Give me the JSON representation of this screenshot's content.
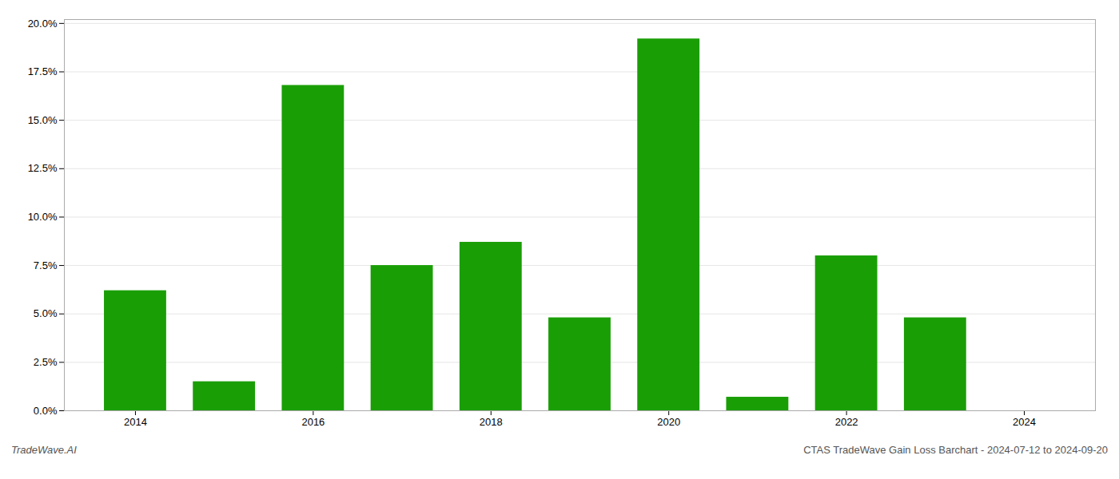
{
  "chart_data": {
    "type": "bar",
    "x": [
      2014,
      2015,
      2016,
      2017,
      2018,
      2019,
      2020,
      2021,
      2022,
      2023,
      2024
    ],
    "values": [
      0.062,
      0.015,
      0.168,
      0.075,
      0.087,
      0.048,
      0.192,
      0.007,
      0.08,
      0.048,
      0.0
    ],
    "color": "#1a9e06",
    "xlim": [
      2013.2,
      2024.8
    ],
    "xticks": [
      2014,
      2016,
      2018,
      2020,
      2022,
      2024
    ],
    "ylim": [
      0,
      0.202
    ],
    "yticks": [
      {
        "value": 0.0,
        "label": "0.0%"
      },
      {
        "value": 0.025,
        "label": "2.5%"
      },
      {
        "value": 0.05,
        "label": "5.0%"
      },
      {
        "value": 0.075,
        "label": "7.5%"
      },
      {
        "value": 0.1,
        "label": "10.0%"
      },
      {
        "value": 0.125,
        "label": "12.5%"
      },
      {
        "value": 0.15,
        "label": "15.0%"
      },
      {
        "value": 0.175,
        "label": "17.5%"
      },
      {
        "value": 0.2,
        "label": "20.0%"
      }
    ],
    "grid": true,
    "annotations": [
      "TradeWave.AI",
      "CTAS TradeWave Gain Loss Barchart - 2024-07-12 to 2024-09-20"
    ]
  }
}
